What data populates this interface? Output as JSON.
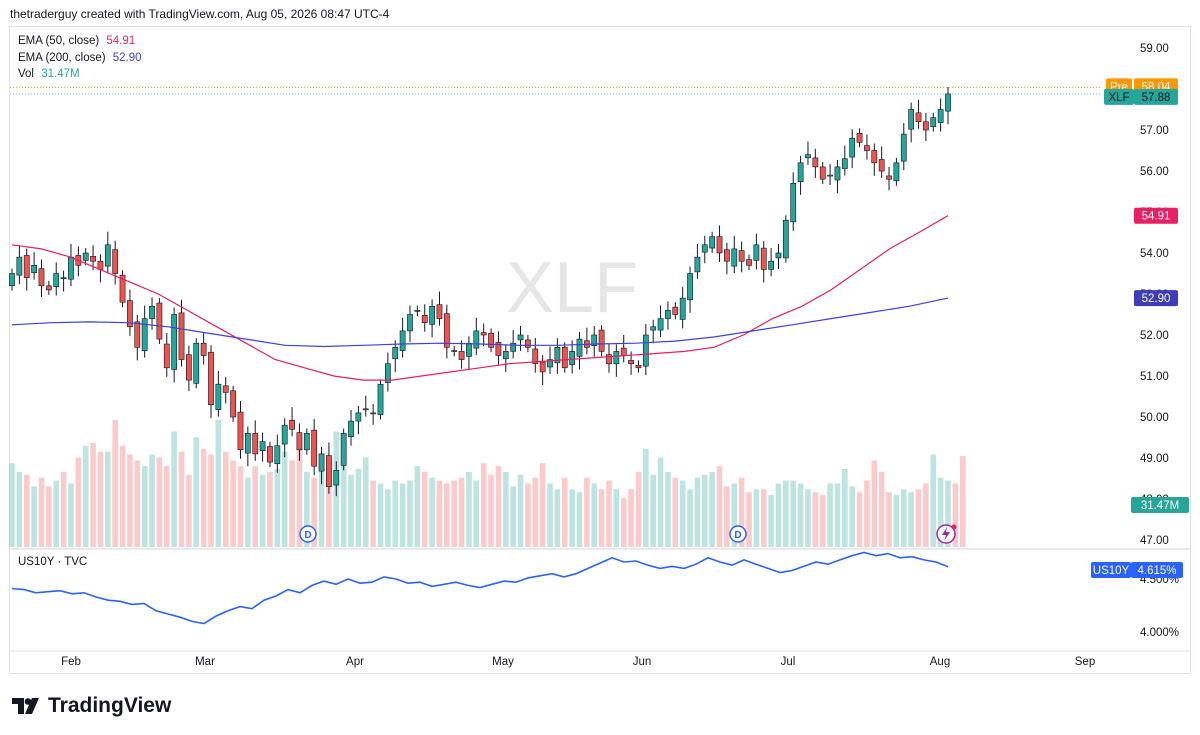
{
  "header": "thetraderguy created with TradingView.com, Aug 05, 2026 08:47 UTC-4",
  "legend": {
    "ema50": {
      "label": "EMA (50, close)",
      "value": "54.91",
      "color": "#e91e63"
    },
    "ema200": {
      "label": "EMA (200, close)",
      "value": "52.90",
      "color": "#3f3fd9"
    },
    "vol": {
      "label": "Vol",
      "value": "31.47M",
      "color": "#26a69a"
    }
  },
  "watermark": "XLF",
  "price_tags": {
    "pre_label": "Pre",
    "pre_value": "58.04",
    "symbol": "XLF",
    "last": "57.88",
    "ema50": "54.91",
    "ema200": "52.90",
    "volume": "31.47M"
  },
  "lower_pane": {
    "title": "US10Y · TVC",
    "tag_symbol": "US10Y",
    "tag_value": "4.615%"
  },
  "brand": "TradingView",
  "colors": {
    "up": "#26a69a",
    "down": "#ef5350",
    "pre": "#ff9800",
    "line": "#2962ff"
  },
  "chart_data": [
    {
      "type": "candlestick",
      "symbol": "XLF",
      "watermark": "XLF",
      "x_ticks": [
        "Feb",
        "Mar",
        "Apr",
        "May",
        "Jun",
        "Jul",
        "Aug",
        "Sep"
      ],
      "y_ticks": [
        "47.00",
        "48.00",
        "49.00",
        "50.00",
        "51.00",
        "52.00",
        "53.00",
        "54.00",
        "55.00",
        "56.00",
        "57.00",
        "58.00",
        "59.00"
      ],
      "ylim": [
        46.5,
        59.3
      ],
      "series": [
        {
          "name": "EMA (50, close)",
          "color": "#e91e63"
        },
        {
          "name": "EMA (200, close)",
          "color": "#3f3fd9"
        },
        {
          "name": "Vol",
          "color": "#26a69a"
        }
      ],
      "closes": [
        53.5,
        53.9,
        53.4,
        53.7,
        53.2,
        53.1,
        53.5,
        53.4,
        53.9,
        53.7,
        54.0,
        53.8,
        53.6,
        54.2,
        53.5,
        52.8,
        52.2,
        51.7,
        52.4,
        52.7,
        51.9,
        51.2,
        52.5,
        51.4,
        50.9,
        51.8,
        51.5,
        50.3,
        50.8,
        50.6,
        50.0,
        49.2,
        49.6,
        49.1,
        49.4,
        48.9,
        49.3,
        49.8,
        49.7,
        49.2,
        49.6,
        48.8,
        49.1,
        48.3,
        48.7,
        49.6,
        49.9,
        50.1,
        50.2,
        50.1,
        50.8,
        51.3,
        51.7,
        52.1,
        52.5,
        52.6,
        52.3,
        52.7,
        52.4,
        51.7,
        51.6,
        51.4,
        51.8,
        52.1,
        52.0,
        51.7,
        51.5,
        51.6,
        51.8,
        52.0,
        51.7,
        51.3,
        51.1,
        51.4,
        51.7,
        51.2,
        51.6,
        51.9,
        51.7,
        52.0,
        51.6,
        51.3,
        51.6,
        51.5,
        51.3,
        51.2,
        52.0,
        52.2,
        52.4,
        52.6,
        52.5,
        52.9,
        53.5,
        53.9,
        54.2,
        54.4,
        54.0,
        53.8,
        54.1,
        53.8,
        53.7,
        54.2,
        53.6,
        53.8,
        54.0,
        54.8,
        55.7,
        56.2,
        56.4,
        56.1,
        55.8,
        55.9,
        56.1,
        56.3,
        56.8,
        56.7,
        56.5,
        56.2,
        56.0,
        55.8,
        56.2,
        56.9,
        57.5,
        57.2,
        57.0,
        57.3,
        57.5,
        57.88
      ],
      "ema50": [
        54.2,
        54.1,
        53.9,
        53.6,
        53.3,
        53.0,
        52.6,
        52.2,
        51.8,
        51.4,
        51.2,
        51.0,
        50.9,
        50.9,
        51.0,
        51.1,
        51.2,
        51.3,
        51.35,
        51.4,
        51.45,
        51.5,
        51.55,
        51.6,
        51.7,
        52.0,
        52.4,
        52.7,
        53.1,
        53.6,
        54.1,
        54.5,
        54.91
      ],
      "ema200": [
        52.25,
        52.3,
        52.32,
        52.3,
        52.2,
        52.05,
        51.9,
        51.75,
        51.72,
        51.75,
        51.78,
        51.8,
        51.78,
        51.75,
        51.75,
        51.78,
        51.8,
        51.85,
        51.95,
        52.1,
        52.25,
        52.4,
        52.55,
        52.7,
        52.9
      ],
      "volume_m": [
        29,
        26,
        25,
        21,
        24,
        21,
        23,
        26,
        22,
        31,
        35,
        36,
        33,
        33,
        44,
        35,
        32,
        30,
        28,
        32,
        31,
        28,
        40,
        33,
        25,
        38,
        34,
        32,
        44,
        33,
        30,
        28,
        24,
        28,
        25,
        26,
        27,
        33,
        30,
        36,
        26,
        24,
        28,
        30,
        40,
        29,
        25,
        27,
        31,
        23,
        22,
        20,
        23,
        22,
        23,
        28,
        26,
        24,
        23,
        22,
        23,
        24,
        26,
        23,
        29,
        25,
        28,
        26,
        21,
        25,
        22,
        24,
        29,
        22,
        20,
        24,
        20,
        19,
        24,
        22,
        20,
        23,
        20,
        17,
        20,
        26,
        34,
        25,
        31,
        26,
        24,
        23,
        20,
        24,
        25,
        26,
        28,
        21,
        22,
        24,
        19,
        20,
        20,
        18,
        22,
        23,
        23,
        22,
        20,
        19,
        18,
        22,
        22,
        27,
        21,
        19,
        23,
        30,
        26,
        19,
        18,
        20,
        19,
        20,
        22,
        32,
        24,
        23,
        22,
        31.47
      ]
    },
    {
      "type": "line",
      "symbol": "US10Y",
      "source": "TVC",
      "y_ticks": [
        "4.000%",
        "4.500%"
      ],
      "ylim": [
        3.88,
        4.78
      ],
      "last": "4.615%",
      "values": [
        4.41,
        4.4,
        4.37,
        4.38,
        4.39,
        4.36,
        4.37,
        4.33,
        4.3,
        4.29,
        4.26,
        4.27,
        4.2,
        4.17,
        4.14,
        4.1,
        4.08,
        4.15,
        4.2,
        4.24,
        4.22,
        4.3,
        4.34,
        4.4,
        4.37,
        4.44,
        4.48,
        4.45,
        4.5,
        4.46,
        4.47,
        4.52,
        4.5,
        4.46,
        4.47,
        4.43,
        4.45,
        4.47,
        4.44,
        4.42,
        4.45,
        4.48,
        4.47,
        4.51,
        4.53,
        4.55,
        4.52,
        4.55,
        4.6,
        4.65,
        4.7,
        4.66,
        4.67,
        4.63,
        4.6,
        4.62,
        4.6,
        4.64,
        4.7,
        4.66,
        4.63,
        4.68,
        4.64,
        4.6,
        4.56,
        4.58,
        4.62,
        4.66,
        4.64,
        4.68,
        4.72,
        4.75,
        4.72,
        4.74,
        4.7,
        4.71,
        4.68,
        4.66,
        4.615
      ]
    }
  ]
}
